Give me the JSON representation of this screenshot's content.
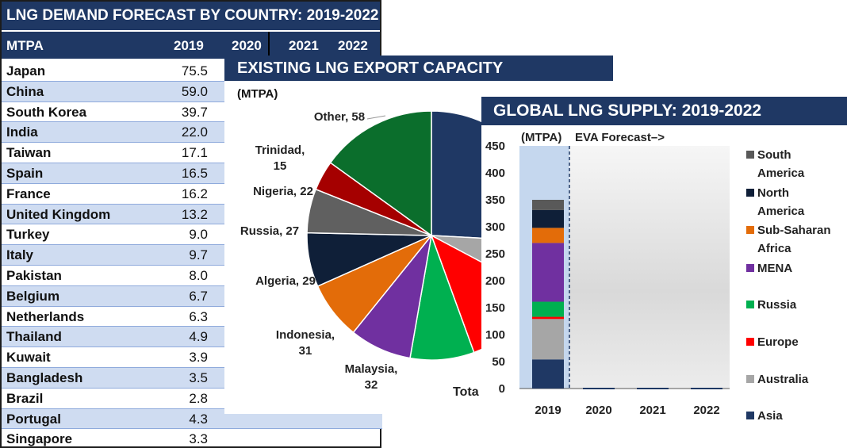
{
  "demand_table": {
    "title": "LNG DEMAND FORECAST BY COUNTRY: 2019-2022",
    "unit_header": "MTPA",
    "years": [
      "2019",
      "2020",
      "2021",
      "2022"
    ],
    "rows": [
      {
        "country": "Japan",
        "v2019": "75.5"
      },
      {
        "country": "China",
        "v2019": "59.0"
      },
      {
        "country": "South Korea",
        "v2019": "39.7"
      },
      {
        "country": "India",
        "v2019": "22.0"
      },
      {
        "country": "Taiwan",
        "v2019": "17.1"
      },
      {
        "country": "Spain",
        "v2019": "16.5"
      },
      {
        "country": "France",
        "v2019": "16.2"
      },
      {
        "country": "United Kingdom",
        "v2019": "13.2"
      },
      {
        "country": "Turkey",
        "v2019": "9.0"
      },
      {
        "country": "Italy",
        "v2019": "9.7"
      },
      {
        "country": "Pakistan",
        "v2019": "8.0"
      },
      {
        "country": "Belgium",
        "v2019": "6.7"
      },
      {
        "country": "Netherlands",
        "v2019": "6.3"
      },
      {
        "country": "Thailand",
        "v2019": "4.9"
      },
      {
        "country": "Kuwait",
        "v2019": "3.9"
      },
      {
        "country": "Bangladesh",
        "v2019": "3.5"
      },
      {
        "country": "Brazil",
        "v2019": "2.8"
      },
      {
        "country": "Portugal",
        "v2019": "4.3"
      },
      {
        "country": "Singapore",
        "v2019": "3.3"
      }
    ]
  },
  "capacity_panel": {
    "title": "EXISTING LNG EXPORT CAPACITY",
    "unit": "(MTPA)",
    "cut_label": "Tota"
  },
  "supply_panel": {
    "title": "GLOBAL LNG SUPPLY: 2019-2022",
    "unit": "(MTPA)",
    "forecast_label": "EVA Forecast–>"
  },
  "chart_data": [
    {
      "type": "table",
      "title": "LNG DEMAND FORECAST BY COUNTRY: 2019-2022",
      "columns": [
        "MTPA",
        "2019",
        "2020",
        "2021",
        "2022"
      ],
      "rows": [
        [
          "Japan",
          75.5
        ],
        [
          "China",
          59.0
        ],
        [
          "South Korea",
          39.7
        ],
        [
          "India",
          22.0
        ],
        [
          "Taiwan",
          17.1
        ],
        [
          "Spain",
          16.5
        ],
        [
          "France",
          16.2
        ],
        [
          "United Kingdom",
          13.2
        ],
        [
          "Turkey",
          9.0
        ],
        [
          "Italy",
          9.7
        ],
        [
          "Pakistan",
          8.0
        ],
        [
          "Belgium",
          6.7
        ],
        [
          "Netherlands",
          6.3
        ],
        [
          "Thailand",
          4.9
        ],
        [
          "Kuwait",
          3.9
        ],
        [
          "Bangladesh",
          3.5
        ],
        [
          "Brazil",
          2.8
        ],
        [
          "Portugal",
          4.3
        ],
        [
          "Singapore",
          3.3
        ]
      ]
    },
    {
      "type": "pie",
      "title": "EXISTING LNG EXPORT CAPACITY",
      "unit": "(MTPA)",
      "slices": [
        {
          "label": "Malaysia, 32",
          "value": 32,
          "color": "#00b050"
        },
        {
          "label": "Indonesia, 31",
          "value": 31,
          "color": "#7030a0"
        },
        {
          "label": "Algeria, 29",
          "value": 29,
          "color": "#e36c09"
        },
        {
          "label": "Russia, 27",
          "value": 27,
          "color": "#0f1f38"
        },
        {
          "label": "Nigeria, 22",
          "value": 22,
          "color": "#606060"
        },
        {
          "label": "Trinidad, 15",
          "value": 15,
          "color": "#a50000"
        },
        {
          "label": "Other, 58",
          "value": 58,
          "color": "#0b6e2c"
        }
      ],
      "colors": {
        "hidden_dark_blue": "#1f3864",
        "hidden_gray": "#a6a6a6",
        "hidden_red": "#ff0000"
      }
    },
    {
      "type": "bar",
      "title": "GLOBAL LNG SUPPLY: 2019-2022",
      "ylabel": "(MTPA)",
      "categories": [
        "2019",
        "2020",
        "2021",
        "2022"
      ],
      "ylim": [
        0,
        450
      ],
      "yticks": [
        0,
        50,
        100,
        150,
        200,
        250,
        300,
        350,
        400,
        450
      ],
      "stacked": true,
      "series": [
        {
          "name": "Asia",
          "color": "#1f3864",
          "values": [
            54,
            0,
            0,
            0
          ]
        },
        {
          "name": "Australia",
          "color": "#a6a6a6",
          "values": [
            75,
            0,
            0,
            0
          ]
        },
        {
          "name": "Europe",
          "color": "#ff0000",
          "values": [
            4,
            0,
            0,
            0
          ]
        },
        {
          "name": "Russia",
          "color": "#00b050",
          "values": [
            28,
            0,
            0,
            0
          ]
        },
        {
          "name": "MENA",
          "color": "#7030a0",
          "values": [
            109,
            0,
            0,
            0
          ]
        },
        {
          "name": "Sub-Saharan Africa",
          "color": "#e36c09",
          "values": [
            28,
            0,
            0,
            0
          ]
        },
        {
          "name": "North America",
          "color": "#0f1f38",
          "values": [
            33,
            0,
            0,
            0
          ]
        },
        {
          "name": "South America",
          "color": "#595959",
          "values": [
            19,
            0,
            0,
            0
          ]
        }
      ],
      "legend_order": [
        "South America",
        "North America",
        "Sub-Saharan Africa",
        "MENA",
        "Russia",
        "Europe",
        "Australia",
        "Asia"
      ],
      "legend_labels": [
        [
          "South",
          "America"
        ],
        [
          "North",
          "America"
        ],
        [
          "Sub-Saharan",
          "Africa"
        ],
        [
          "MENA"
        ],
        [
          "Russia"
        ],
        [
          "Europe"
        ],
        [
          "Australia"
        ],
        [
          "Asia"
        ]
      ]
    }
  ]
}
